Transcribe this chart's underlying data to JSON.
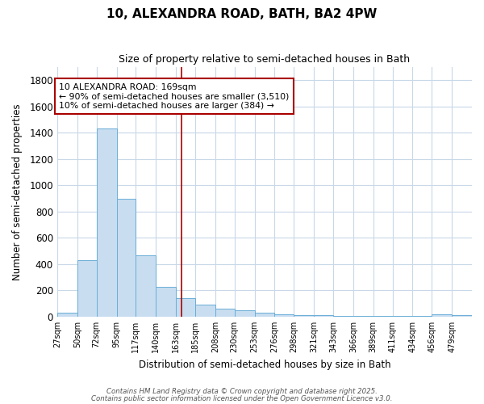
{
  "title": "10, ALEXANDRA ROAD, BATH, BA2 4PW",
  "subtitle": "Size of property relative to semi-detached houses in Bath",
  "xlabel": "Distribution of semi-detached houses by size in Bath",
  "ylabel": "Number of semi-detached properties",
  "bar_color": "#c8ddf0",
  "bar_edge_color": "#6aaed6",
  "bins": [
    27,
    50,
    72,
    95,
    117,
    140,
    163,
    185,
    208,
    230,
    253,
    276,
    298,
    321,
    343,
    366,
    389,
    411,
    434,
    456,
    479,
    502
  ],
  "bin_labels": [
    "27sqm",
    "50sqm",
    "72sqm",
    "95sqm",
    "117sqm",
    "140sqm",
    "163sqm",
    "185sqm",
    "208sqm",
    "230sqm",
    "253sqm",
    "276sqm",
    "298sqm",
    "321sqm",
    "343sqm",
    "366sqm",
    "389sqm",
    "411sqm",
    "434sqm",
    "456sqm",
    "479sqm"
  ],
  "values": [
    30,
    430,
    1430,
    900,
    470,
    225,
    140,
    90,
    60,
    48,
    30,
    18,
    14,
    10,
    8,
    7,
    6,
    5,
    5,
    15,
    13
  ],
  "vline_x": 169,
  "vline_color": "#aa0000",
  "ylim": [
    0,
    1900
  ],
  "yticks": [
    0,
    200,
    400,
    600,
    800,
    1000,
    1200,
    1400,
    1600,
    1800
  ],
  "annotation_title": "10 ALEXANDRA ROAD: 169sqm",
  "annotation_line1": "← 90% of semi-detached houses are smaller (3,510)",
  "annotation_line2": "10% of semi-detached houses are larger (384) →",
  "annotation_box_color": "#aa0000",
  "bg_color": "#ffffff",
  "grid_color": "#c8d8e8",
  "footer1": "Contains HM Land Registry data © Crown copyright and database right 2025.",
  "footer2": "Contains public sector information licensed under the Open Government Licence v3.0."
}
